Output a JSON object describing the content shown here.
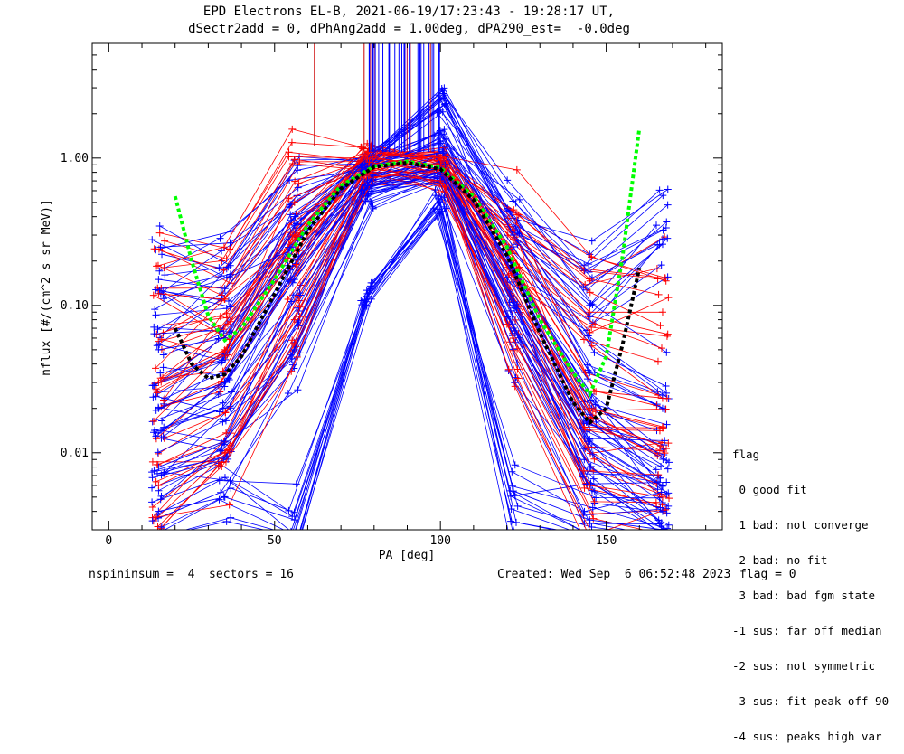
{
  "title": {
    "line1": "EPD Electrons EL-B, 2021-06-19/17:23:43 - 19:28:17 UT,",
    "line2": "dSectr2add = 0, dPhAng2add = 1.00deg, dPA290_est=  -0.0deg"
  },
  "footer": {
    "left": "nspininsum =  4  sectors = 16",
    "created": "Created: Wed Sep  6 06:52:48 2023",
    "flag": "flag = 0"
  },
  "legend": {
    "title": "flag",
    "items": [
      " 0 good fit",
      " 1 bad: not converge",
      " 2 bad: no fit",
      " 3 bad: bad fgm state",
      "-1 sus: far off median",
      "-2 sus: not symmetric",
      "-3 sus: fit peak off 90",
      "-4 sus: peaks high var"
    ]
  },
  "chart_data": {
    "type": "line",
    "xlabel": "PA [deg]",
    "ylabel": "nflux [#/(cm^2 s sr MeV)]",
    "xlim": [
      -5,
      185
    ],
    "ylim": [
      0.003,
      6
    ],
    "yscale": "log",
    "xticks": [
      "0",
      "50",
      "100",
      "150"
    ],
    "xtick_values": [
      0,
      50,
      100,
      150
    ],
    "yticks": [
      "0.01",
      "0.10",
      "1.00"
    ],
    "ytick_values": [
      0.01,
      0.1,
      1.0
    ],
    "pa_bins": [
      13,
      35,
      56,
      78,
      100,
      122,
      145,
      167
    ],
    "colors": {
      "blue": "#0000ff",
      "red": "#ff0000",
      "green": "#00ff00",
      "black": "#000000"
    },
    "series": [
      {
        "color": "blue",
        "x": [
          15,
          35,
          56,
          78,
          100,
          122,
          145,
          167
        ],
        "y": [
          0.05,
          0.06,
          0.35,
          0.85,
          1.3,
          0.25,
          0.035,
          0.02
        ]
      },
      {
        "color": "blue",
        "x": [
          15,
          35,
          56,
          78,
          100,
          122,
          145,
          167
        ],
        "y": [
          0.02,
          0.03,
          0.15,
          0.7,
          0.85,
          0.1,
          0.012,
          0.006
        ]
      },
      {
        "color": "blue",
        "x": [
          15,
          35,
          56,
          78,
          100,
          122,
          145,
          167
        ],
        "y": [
          0.008,
          0.012,
          0.05,
          0.55,
          0.8,
          0.07,
          0.008,
          0.004
        ]
      },
      {
        "color": "red",
        "x": [
          15,
          35,
          56,
          78,
          100,
          122,
          145,
          167
        ],
        "y": [
          0.03,
          0.05,
          0.3,
          1.1,
          1.0,
          0.2,
          0.02,
          0.015
        ]
      },
      {
        "color": "red",
        "x": [
          15,
          35,
          56,
          78,
          100,
          122,
          145,
          167
        ],
        "y": [
          0.006,
          0.01,
          0.08,
          0.8,
          0.7,
          0.06,
          0.006,
          0.005
        ]
      },
      {
        "color": "blue",
        "x": [
          15,
          35,
          56,
          78,
          100,
          122,
          145,
          167
        ],
        "y": [
          0.15,
          0.13,
          0.4,
          1.0,
          2.5,
          0.3,
          0.1,
          0.26
        ]
      },
      {
        "color": "blue",
        "x": [
          15,
          35,
          56,
          78,
          100,
          122,
          145,
          167
        ],
        "y": [
          0.004,
          0.005,
          0.0035,
          0.12,
          0.5,
          0.0055,
          0.0035,
          0.003
        ]
      },
      {
        "color": "red",
        "x": [
          15,
          35,
          56,
          78,
          100,
          122,
          145,
          167
        ],
        "y": [
          0.12,
          0.11,
          0.5,
          1.0,
          0.9,
          0.28,
          0.09,
          0.09
        ]
      }
    ],
    "fits": [
      {
        "color": "green",
        "style": "dashed",
        "x": [
          20,
          25,
          30,
          35,
          40,
          50,
          60,
          70,
          80,
          90,
          100,
          110,
          120,
          130,
          140,
          145,
          150,
          155,
          160
        ],
        "y": [
          0.55,
          0.2,
          0.085,
          0.058,
          0.07,
          0.15,
          0.35,
          0.65,
          0.88,
          0.95,
          0.86,
          0.55,
          0.25,
          0.08,
          0.035,
          0.025,
          0.045,
          0.22,
          1.6
        ]
      },
      {
        "color": "black",
        "style": "dashed",
        "x": [
          20,
          25,
          30,
          35,
          40,
          50,
          60,
          70,
          80,
          90,
          100,
          110,
          120,
          130,
          140,
          145,
          150,
          155,
          160
        ],
        "y": [
          0.07,
          0.04,
          0.032,
          0.034,
          0.045,
          0.12,
          0.32,
          0.62,
          0.87,
          0.93,
          0.84,
          0.52,
          0.22,
          0.065,
          0.022,
          0.016,
          0.02,
          0.055,
          0.18
        ]
      }
    ]
  }
}
